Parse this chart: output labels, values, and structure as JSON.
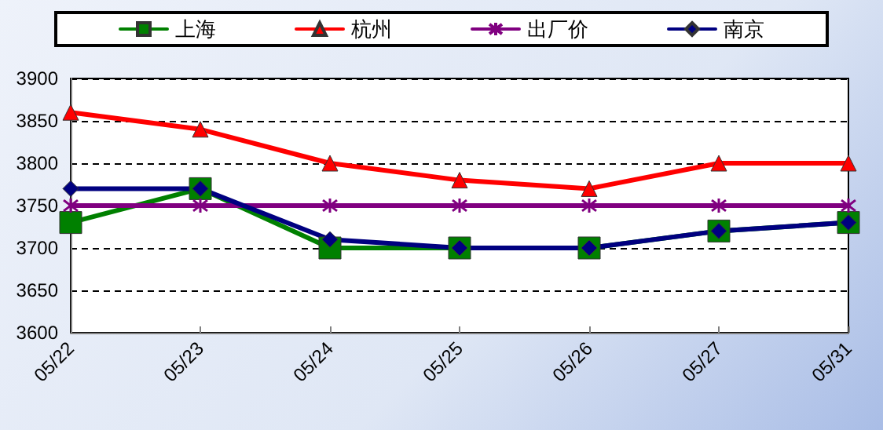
{
  "chart_data": {
    "type": "line",
    "categories": [
      "05/22",
      "05/23",
      "05/24",
      "05/25",
      "05/26",
      "05/27",
      "05/31"
    ],
    "series": [
      {
        "name": "上海",
        "color": "#008000",
        "marker": "square",
        "values": [
          3730,
          3770,
          3700,
          3700,
          3700,
          3720,
          3730
        ]
      },
      {
        "name": "杭州",
        "color": "#ff0000",
        "marker": "triangle",
        "values": [
          3860,
          3840,
          3800,
          3780,
          3770,
          3800,
          3800
        ]
      },
      {
        "name": "出厂价",
        "color": "#800080",
        "marker": "cross",
        "values": [
          3750,
          3750,
          3750,
          3750,
          3750,
          3750,
          3750
        ]
      },
      {
        "name": "南京",
        "color": "#000080",
        "marker": "diamond",
        "values": [
          3770,
          3770,
          3710,
          3700,
          3700,
          3720,
          3730
        ]
      }
    ],
    "ylim": [
      3600,
      3900
    ],
    "yticks": [
      3600,
      3650,
      3700,
      3750,
      3800,
      3850,
      3900
    ],
    "grid": "y",
    "legend": "top",
    "line_style": "solid"
  }
}
